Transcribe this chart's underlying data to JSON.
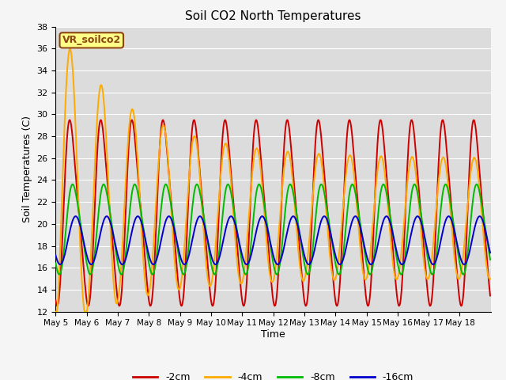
{
  "title": "Soil CO2 North Temperatures",
  "ylabel": "Soil Temperatures (C)",
  "xlabel": "Time",
  "ylim": [
    12,
    38
  ],
  "label_text": "VR_soilco2",
  "plot_bg_color": "#dcdcdc",
  "fig_bg_color": "#f5f5f5",
  "grid_color": "#ffffff",
  "series": {
    "-2cm": {
      "color": "#cc0000",
      "linewidth": 1.4
    },
    "-4cm": {
      "color": "#ffaa00",
      "linewidth": 1.4
    },
    "-8cm": {
      "color": "#00bb00",
      "linewidth": 1.4
    },
    "-16cm": {
      "color": "#0000cc",
      "linewidth": 1.4
    }
  },
  "x_tick_labels": [
    "May 5",
    "May 6",
    "May 7",
    "May 8",
    "May 9",
    "May 10",
    "May 11",
    "May 12",
    "May 13",
    "May 14",
    "May 15",
    "May 16",
    "May 17",
    "May 18"
  ],
  "y_ticks": [
    12,
    14,
    16,
    18,
    20,
    22,
    24,
    26,
    28,
    30,
    32,
    34,
    36,
    38
  ],
  "days": 14,
  "points_per_day": 48
}
